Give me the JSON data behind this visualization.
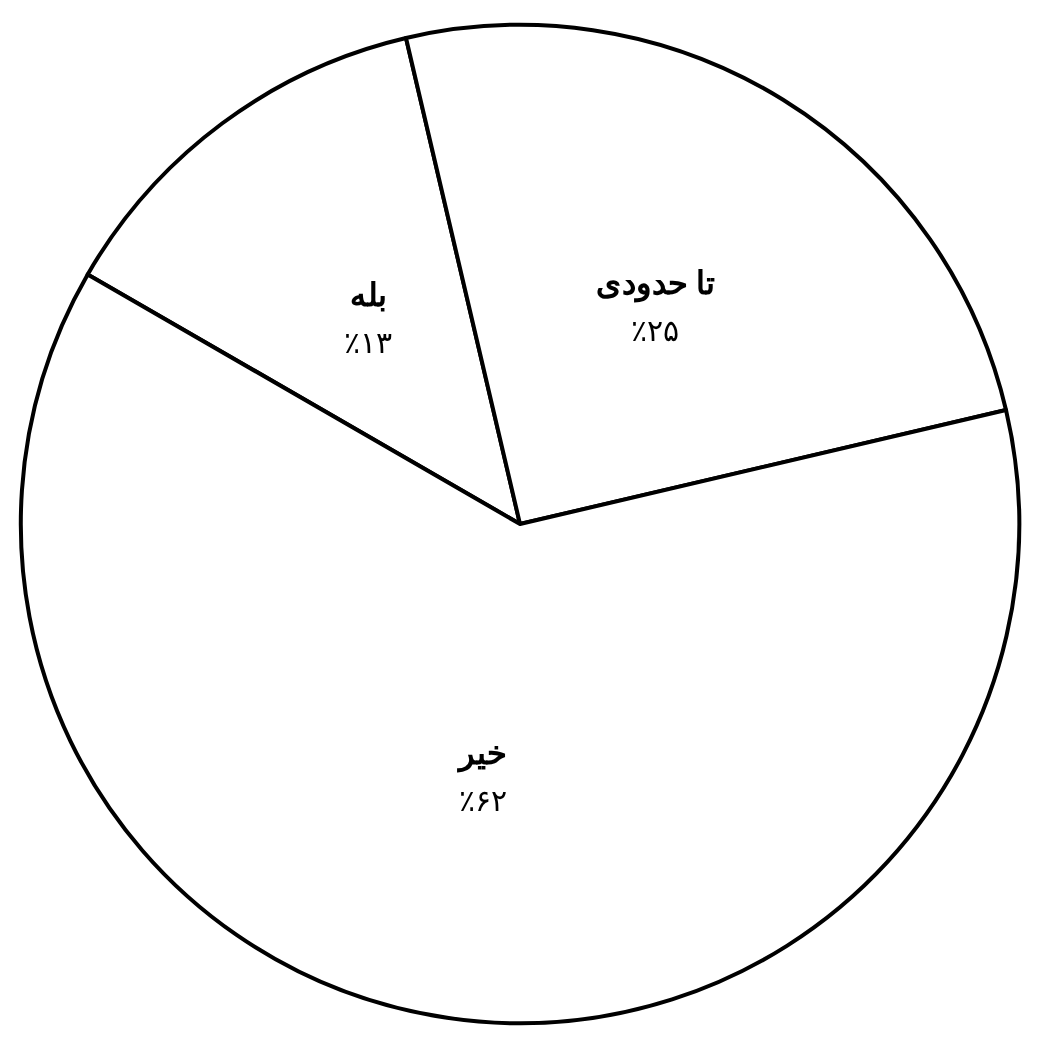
{
  "chart_data": {
    "type": "pie",
    "categories": [
      "بله",
      "تا حدودی",
      "خیر"
    ],
    "values": [
      13,
      25,
      62
    ],
    "colors": [
      "#ffffff",
      "#ffffff",
      "#ffffff"
    ],
    "value_labels": [
      "٪۱۳",
      "٪۲۵",
      "٪۶۲"
    ]
  }
}
